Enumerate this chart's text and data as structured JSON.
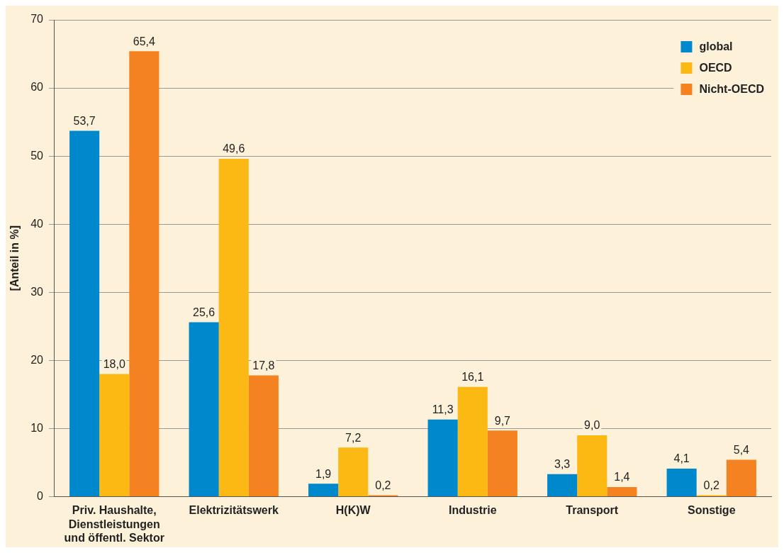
{
  "chart_data": {
    "type": "bar",
    "ylabel": "[Anteil in %]",
    "categories": [
      "Priv. Haushalte, Dienstleistungen und öffentl. Sektor",
      "Elektrizitätswerk",
      "H(K)W",
      "Industrie",
      "Transport",
      "Sonstige"
    ],
    "series": [
      {
        "name": "global",
        "color": "#0088cc",
        "values": [
          53.7,
          25.6,
          1.9,
          11.3,
          3.3,
          4.1
        ],
        "value_labels": [
          "53,7",
          "25,6",
          "1,9",
          "11,3",
          "3,3",
          "4,1"
        ]
      },
      {
        "name": "OECD",
        "color": "#fdb913",
        "values": [
          18.0,
          49.6,
          7.2,
          16.1,
          9.0,
          0.2
        ],
        "value_labels": [
          "18,0",
          "49,6",
          "7,2",
          "16,1",
          "9,0",
          "0,2"
        ]
      },
      {
        "name": "Nicht-OECD",
        "color": "#f58220",
        "values": [
          65.4,
          17.8,
          0.2,
          9.7,
          1.4,
          5.4
        ],
        "value_labels": [
          "65,4",
          "17,8",
          "0,2",
          "9,7",
          "1,4",
          "5,4"
        ]
      }
    ],
    "ylim": [
      0,
      70
    ],
    "yticks": [
      0,
      10,
      20,
      30,
      40,
      50,
      60,
      70
    ],
    "grid": "y",
    "legend": "top right"
  }
}
